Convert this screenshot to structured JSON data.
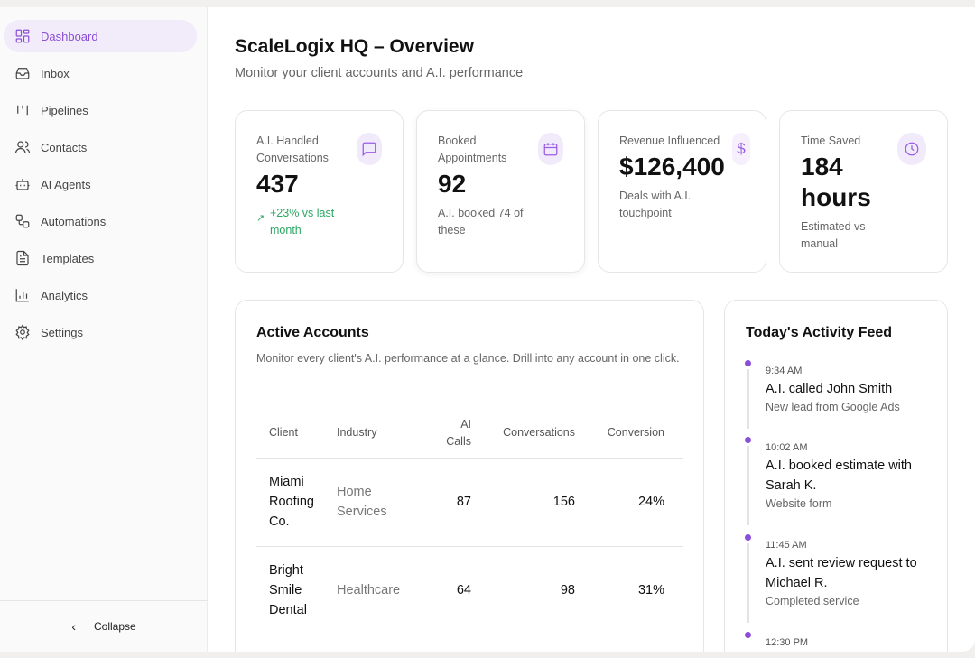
{
  "sidebar": {
    "items": [
      {
        "label": "Dashboard",
        "icon": "dashboard-icon"
      },
      {
        "label": "Inbox",
        "icon": "inbox-icon"
      },
      {
        "label": "Pipelines",
        "icon": "pipelines-icon"
      },
      {
        "label": "Contacts",
        "icon": "contacts-icon"
      },
      {
        "label": "AI Agents",
        "icon": "bot-icon"
      },
      {
        "label": "Automations",
        "icon": "automations-icon"
      },
      {
        "label": "Templates",
        "icon": "file-icon"
      },
      {
        "label": "Analytics",
        "icon": "chart-icon"
      },
      {
        "label": "Settings",
        "icon": "gear-icon"
      }
    ],
    "collapse": "Collapse"
  },
  "header": {
    "title": "ScaleLogix HQ – Overview",
    "subtitle": "Monitor your client accounts and A.I. performance"
  },
  "stats": [
    {
      "label": "A.I. Handled Conversations",
      "value": "437",
      "note": "+23% vs last month"
    },
    {
      "label": "Booked Appointments",
      "value": "92",
      "note": "A.I. booked 74 of these"
    },
    {
      "label": "Revenue Influenced",
      "value": "$126,400",
      "note": "Deals with A.I. touchpoint"
    },
    {
      "label": "Time Saved",
      "value": "184 hours",
      "note": "Estimated vs manual"
    }
  ],
  "accounts": {
    "title": "Active Accounts",
    "description": "Monitor every client's A.I. performance at a glance. Drill into any account in one click.",
    "columns": [
      "Client",
      "Industry",
      "AI Calls",
      "Conversations",
      "Conversion"
    ],
    "rows": [
      [
        "Miami Roofing Co.",
        "Home Services",
        "87",
        "156",
        "24%"
      ],
      [
        "Bright Smile Dental",
        "Healthcare",
        "64",
        "98",
        "31%"
      ]
    ]
  },
  "feed": {
    "title": "Today's Activity Feed",
    "items": [
      {
        "time": "9:34 AM",
        "title": "A.I. called John Smith",
        "sub": "New lead from Google Ads"
      },
      {
        "time": "10:02 AM",
        "title": "A.I. booked estimate with Sarah K.",
        "sub": "Website form"
      },
      {
        "time": "11:45 AM",
        "title": "A.I. sent review request to Michael R.",
        "sub": "Completed service"
      },
      {
        "time": "12:30 PM",
        "title": "",
        "sub": ""
      }
    ]
  },
  "colors": {
    "accent": "#8a4fd6",
    "positive": "#2ba862"
  }
}
